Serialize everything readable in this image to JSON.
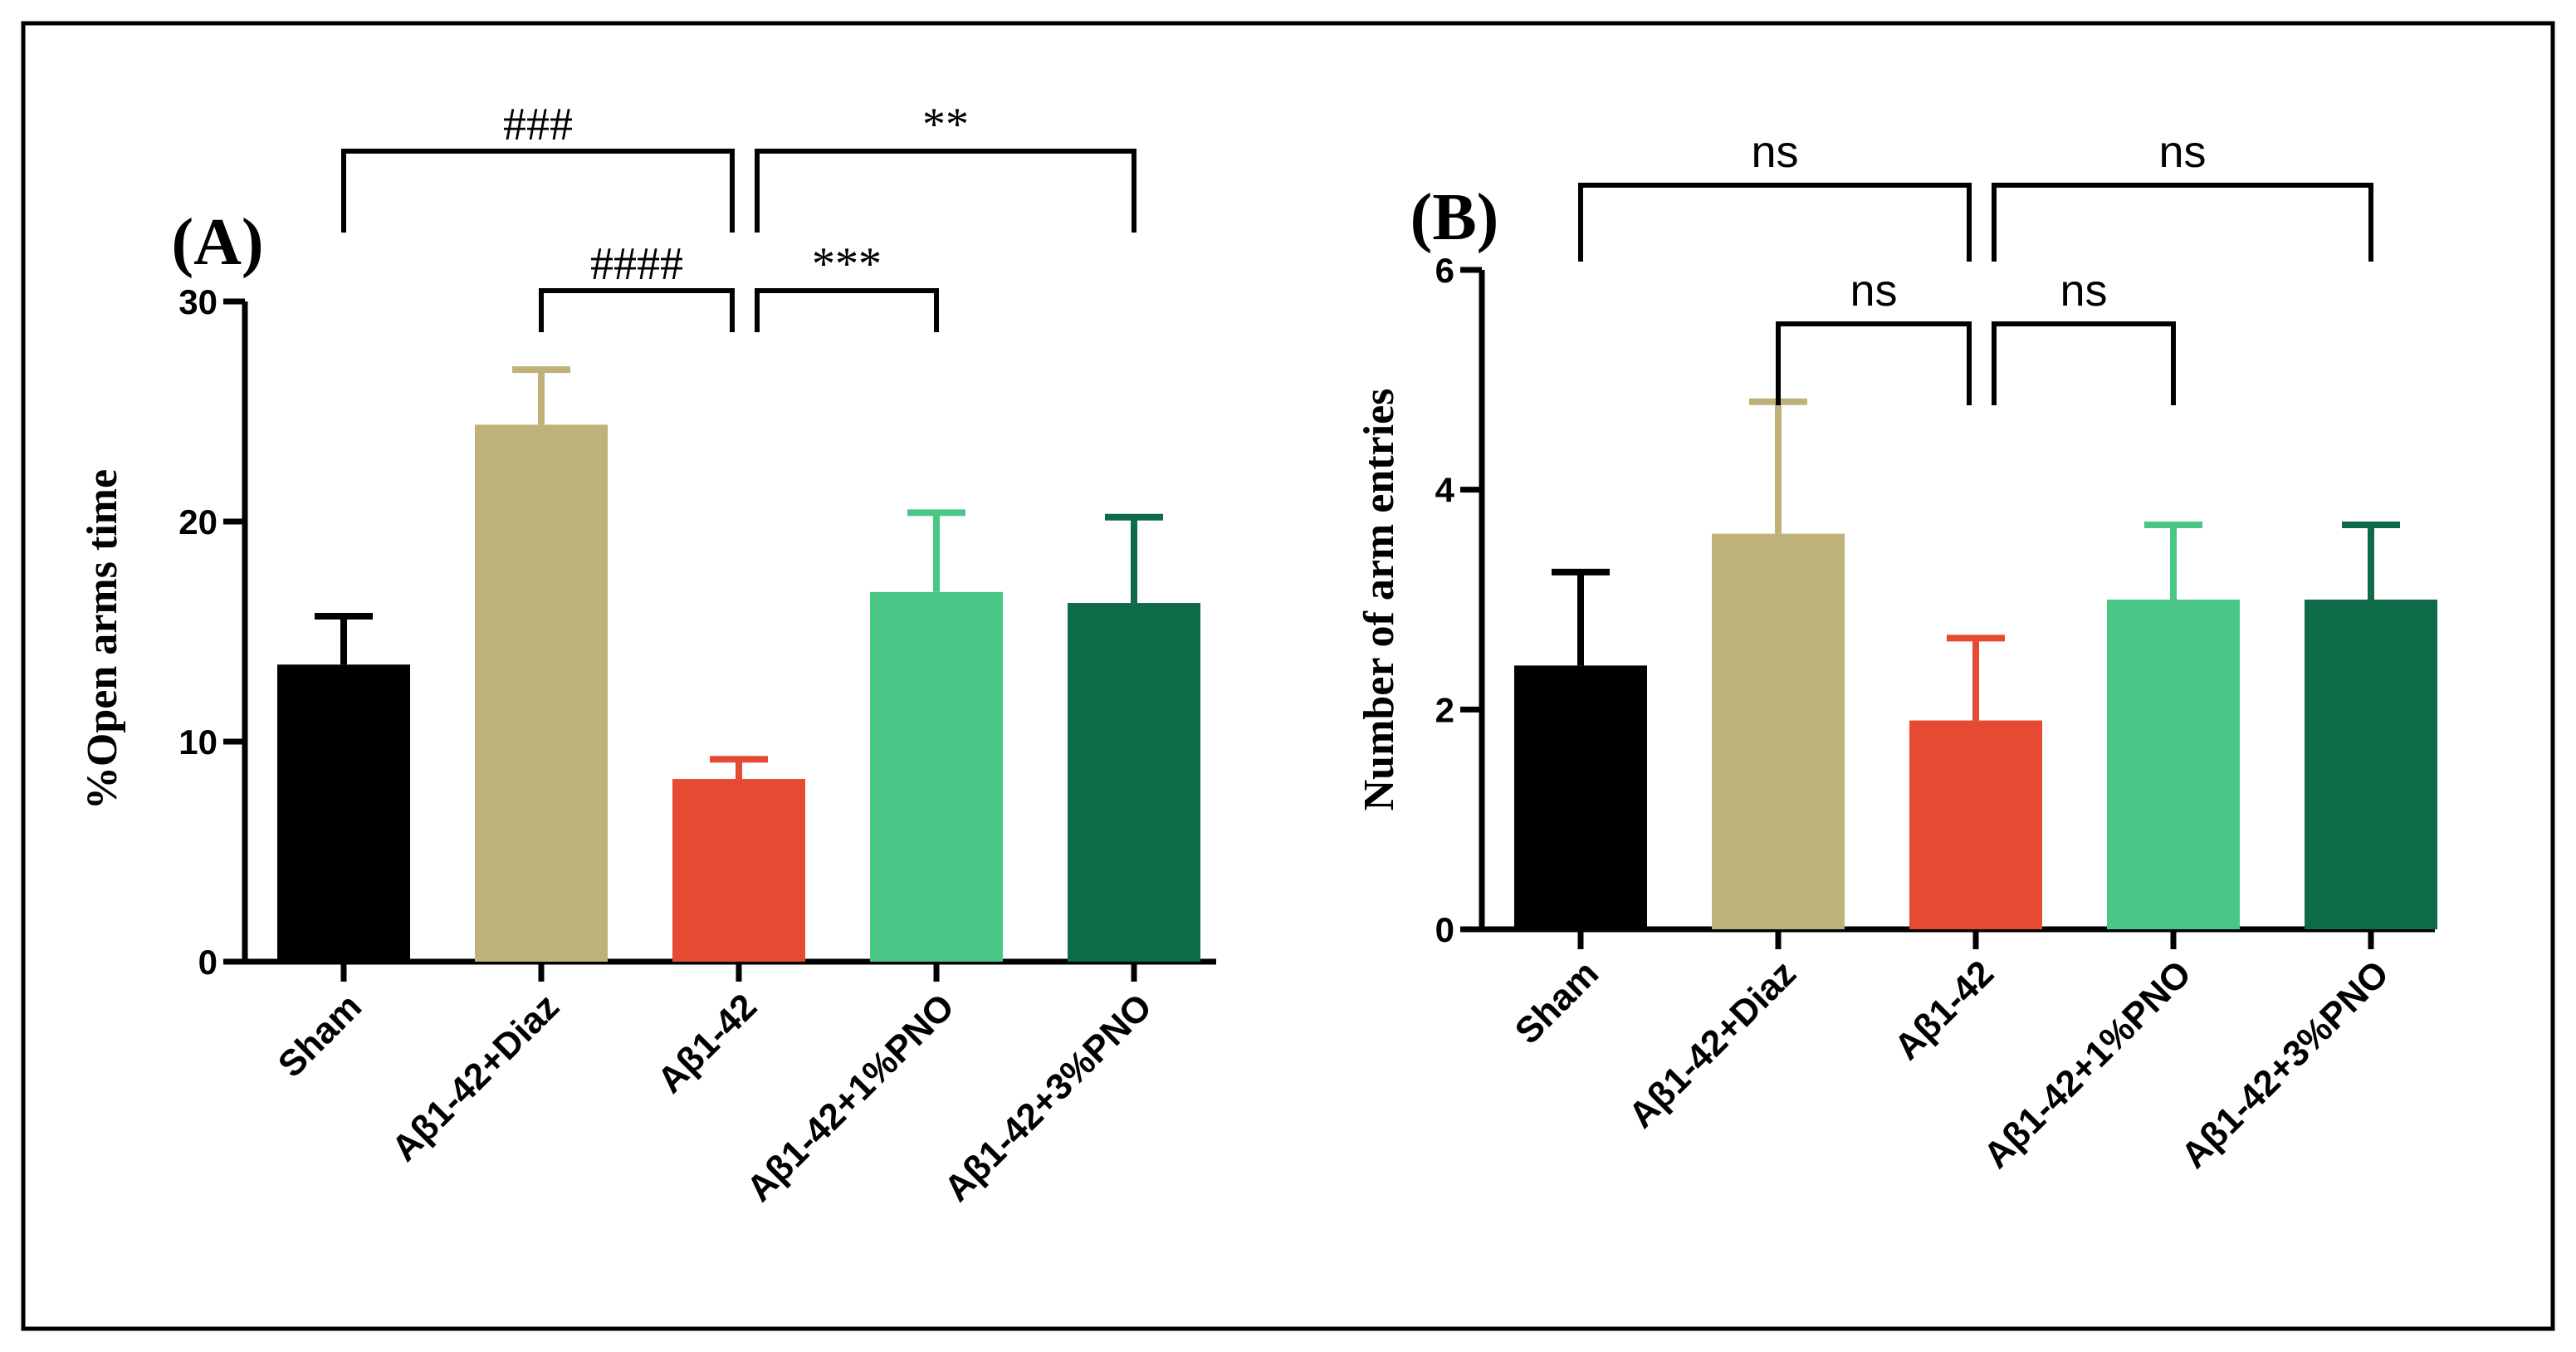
{
  "chart_data": [
    {
      "panel_label": "(A)",
      "type": "bar",
      "ylabel": "%Open arms time",
      "xlabel": "",
      "ylim": [
        0,
        30
      ],
      "yticks": [
        0,
        10,
        20,
        30
      ],
      "categories": [
        "Sham",
        "Aβ1-42+Diaz",
        "Aβ1-42",
        "Aβ1-42+1%PNO",
        "Aβ1-42+3%PNO"
      ],
      "values": [
        13.5,
        24.4,
        8.3,
        16.8,
        16.3
      ],
      "errors": [
        2.2,
        2.5,
        0.9,
        3.6,
        3.9
      ],
      "colors": [
        "#000000",
        "#beb27a",
        "#e64a32",
        "#4ac786",
        "#0d6b47"
      ],
      "comparisons": [
        {
          "from": 0,
          "to": 2,
          "label": "###",
          "level": 2
        },
        {
          "from": 2,
          "to": 4,
          "label": "**",
          "level": 2
        },
        {
          "from": 1,
          "to": 2,
          "label": "####",
          "level": 1
        },
        {
          "from": 2,
          "to": 3,
          "label": "***",
          "level": 1
        }
      ]
    },
    {
      "panel_label": "(B)",
      "type": "bar",
      "ylabel": "Number of arm entries",
      "xlabel": "",
      "ylim": [
        0,
        6
      ],
      "yticks": [
        0,
        2,
        4,
        6
      ],
      "categories": [
        "Sham",
        "Aβ1-42+Diaz",
        "Aβ1-42",
        "Aβ1-42+1%PNO",
        "Aβ1-42+3%PNO"
      ],
      "values": [
        2.4,
        3.6,
        1.9,
        3.0,
        3.0
      ],
      "errors": [
        0.85,
        1.2,
        0.75,
        0.68,
        0.68
      ],
      "colors": [
        "#000000",
        "#beb27a",
        "#e64a32",
        "#4ac786",
        "#0d6b47"
      ],
      "comparisons": [
        {
          "from": 0,
          "to": 2,
          "label": "ns",
          "level": 2
        },
        {
          "from": 2,
          "to": 4,
          "label": "ns",
          "level": 2
        },
        {
          "from": 1,
          "to": 2,
          "label": "ns",
          "level": 1
        },
        {
          "from": 2,
          "to": 3,
          "label": "ns",
          "level": 1
        }
      ]
    }
  ]
}
